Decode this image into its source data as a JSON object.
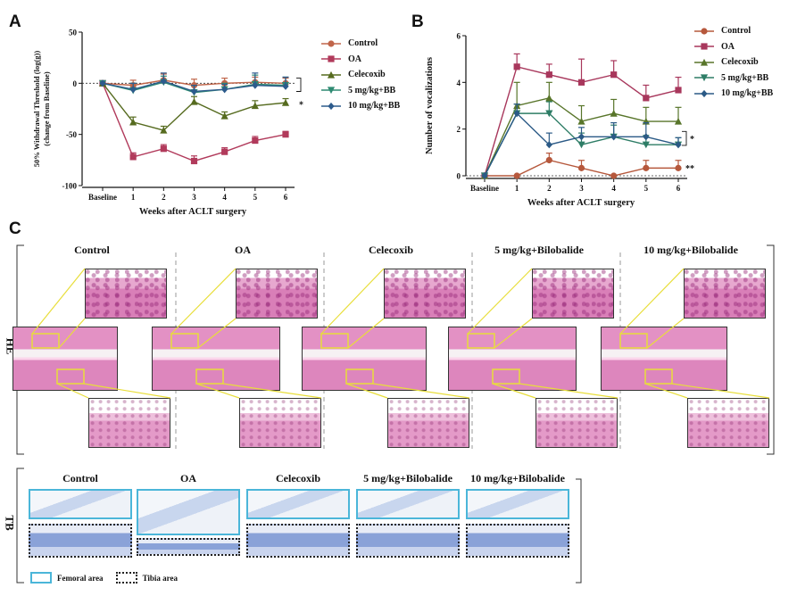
{
  "panels": {
    "a": "A",
    "b": "B",
    "c": "C"
  },
  "chart_data": [
    {
      "type": "line",
      "ylabel_line1": "50% Withdrawal Threshold (log(g))",
      "ylabel_line2": "(change from Baseline)",
      "xlabel": "Weeks after ACLT surgery",
      "categories": [
        "Baseline",
        "1",
        "2",
        "3",
        "4",
        "5",
        "6"
      ],
      "ylim": [
        -100,
        50
      ],
      "yticks": [
        "50",
        "0",
        "-50",
        "-100"
      ],
      "series": [
        {
          "name": "Control",
          "color": "#c0654a",
          "marker": "circle",
          "values": [
            0,
            -2,
            3,
            -2,
            0,
            1,
            0
          ],
          "err": [
            0,
            5,
            6,
            6,
            5,
            5,
            5
          ]
        },
        {
          "name": "OA",
          "color": "#b13a5b",
          "marker": "square",
          "values": [
            0,
            -72,
            -64,
            -76,
            -67,
            -56,
            -50
          ],
          "err": [
            0,
            4,
            4,
            5,
            4,
            4,
            3
          ]
        },
        {
          "name": "Celecoxib",
          "color": "#566b1f",
          "marker": "triangle",
          "values": [
            0,
            -38,
            -46,
            -18,
            -32,
            -22,
            -19
          ],
          "err": [
            0,
            5,
            4,
            5,
            4,
            5,
            4
          ]
        },
        {
          "name": "5 mg/kg+BB",
          "color": "#2e8a72",
          "marker": "triangle-down",
          "values": [
            0,
            -7,
            1,
            -9,
            -6,
            -1,
            -2
          ],
          "err": [
            0,
            7,
            6,
            7,
            6,
            9,
            8
          ]
        },
        {
          "name": "10 mg/kg+BB",
          "color": "#2d5b8c",
          "marker": "diamond",
          "values": [
            0,
            -6,
            2,
            -8,
            -6,
            -2,
            -3
          ],
          "err": [
            0,
            6,
            8,
            6,
            5,
            12,
            9
          ]
        }
      ],
      "significance": [
        "**",
        "*"
      ]
    },
    {
      "type": "line",
      "ylabel": "Number of vocalizations",
      "xlabel": "Weeks after ACLT surgery",
      "categories": [
        "Baseline",
        "1",
        "2",
        "3",
        "4",
        "5",
        "6"
      ],
      "ylim": [
        0,
        6
      ],
      "yticks": [
        "6",
        "4",
        "2",
        "0"
      ],
      "series": [
        {
          "name": "Control",
          "color": "#b6583c",
          "marker": "circle",
          "values": [
            0,
            0,
            0.67,
            0.33,
            0,
            0.33,
            0.33
          ],
          "err": [
            0,
            0,
            0.3,
            0.33,
            0,
            0.33,
            0.33
          ]
        },
        {
          "name": "OA",
          "color": "#a8375c",
          "marker": "square",
          "values": [
            0,
            4.67,
            4.33,
            4.0,
            4.33,
            3.33,
            3.67
          ],
          "err": [
            0,
            0.55,
            0.45,
            1.0,
            0.6,
            0.55,
            0.55
          ]
        },
        {
          "name": "Celecoxib",
          "color": "#58752a",
          "marker": "triangle",
          "values": [
            0,
            3.0,
            3.33,
            2.33,
            2.67,
            2.33,
            2.33
          ],
          "err": [
            0,
            1.0,
            0.67,
            0.67,
            0.6,
            0.6,
            0.6
          ]
        },
        {
          "name": "5 mg/kg+BB",
          "color": "#2e7d66",
          "marker": "triangle-down",
          "values": [
            0,
            2.67,
            2.67,
            1.33,
            1.67,
            1.33,
            1.33
          ],
          "err": [
            0,
            0.4,
            0.5,
            0.5,
            0.5,
            0.4,
            0.3
          ]
        },
        {
          "name": "10 mg/kg+BB",
          "color": "#2b5a86",
          "marker": "diamond",
          "values": [
            0,
            2.67,
            1.33,
            1.67,
            1.67,
            1.67,
            1.33
          ],
          "err": [
            0,
            0.4,
            0.5,
            0.4,
            0.6,
            0.6,
            0.3
          ]
        }
      ],
      "significance": [
        "*",
        "**"
      ]
    }
  ],
  "he": {
    "side_label": "HE",
    "columns": [
      "Control",
      "OA",
      "Celecoxib",
      "5 mg/kg+Bilobalide",
      "10 mg/kg+Bilobalide"
    ]
  },
  "tb": {
    "side_label": "TB",
    "columns": [
      "Control",
      "OA",
      "Celecoxib",
      "5 mg/kg+Bilobalide",
      "10 mg/kg+Bilobalide"
    ],
    "legend": {
      "femoral": "Femoral area",
      "tibia": "Tibia area"
    }
  },
  "colors": {
    "zoom_lines": "#e8de3a",
    "femoral_border": "#4bb6d9",
    "tibia_border": "#222222"
  }
}
